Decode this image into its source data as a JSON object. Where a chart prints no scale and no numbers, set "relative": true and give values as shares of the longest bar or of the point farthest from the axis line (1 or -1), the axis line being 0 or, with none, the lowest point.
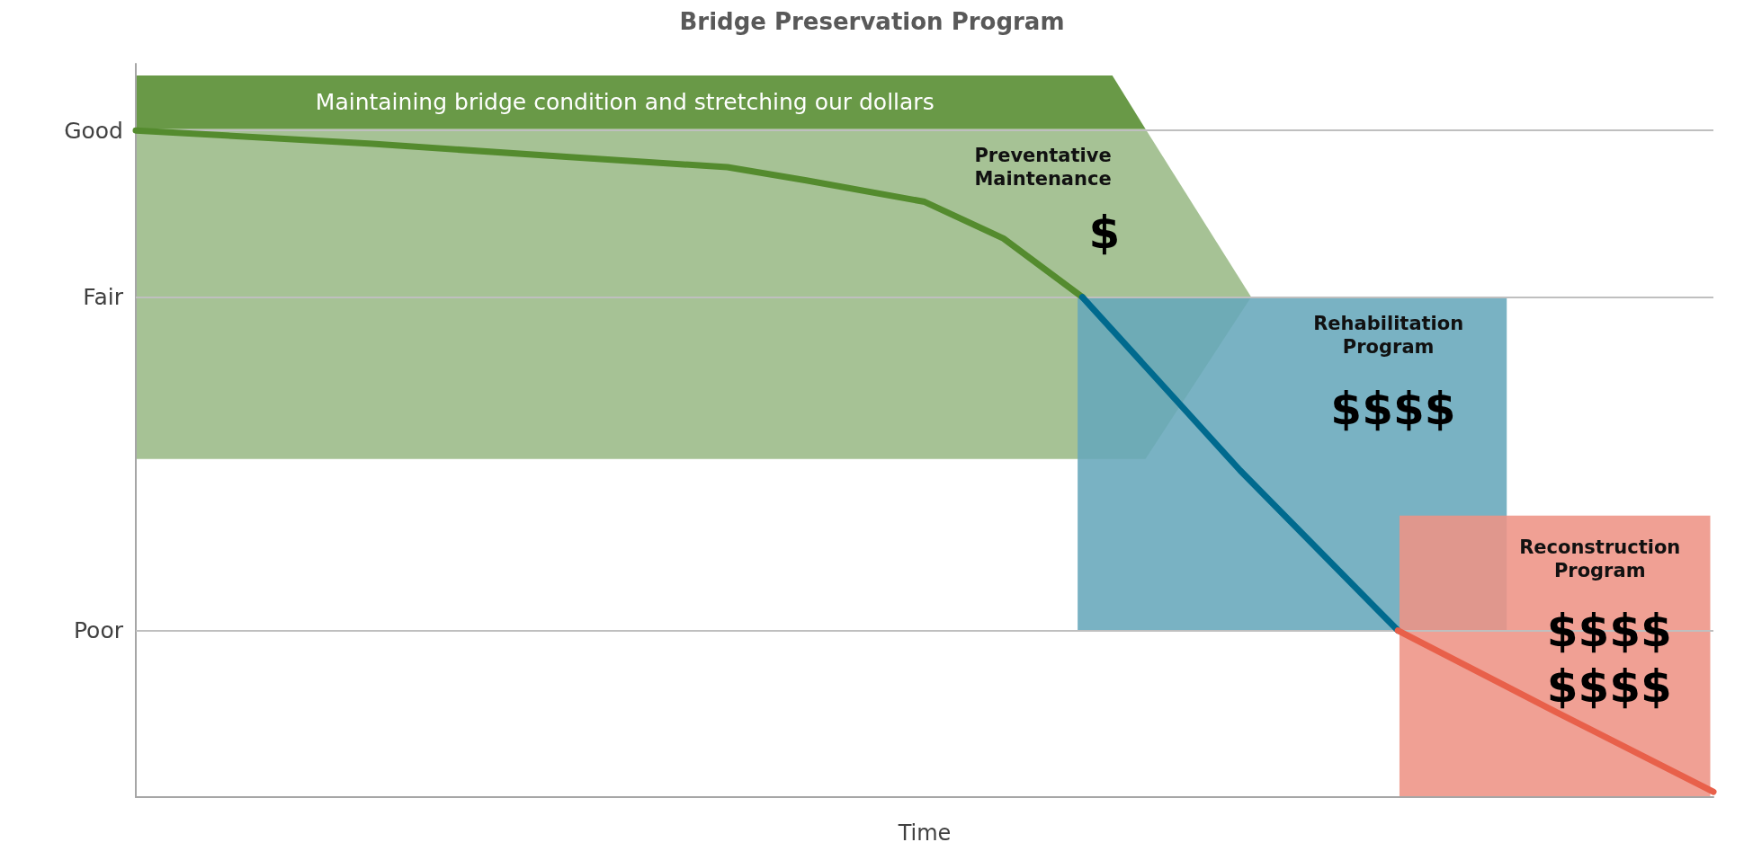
{
  "chart_data": {
    "type": "line",
    "title": "Bridge Preservation Program",
    "xlabel": "Time",
    "relative": true,
    "categories": [
      null,
      null,
      null,
      null,
      null,
      null,
      null,
      null,
      null,
      null,
      null,
      null,
      null,
      null,
      null,
      null,
      null,
      null,
      null,
      null,
      null,
      null,
      null,
      null,
      null,
      null,
      null,
      null,
      null,
      null,
      null,
      null,
      null,
      null,
      null,
      null,
      null,
      null,
      null,
      null,
      null
    ],
    "ref_lines": [
      {
        "axis": "y",
        "value": 0.25,
        "label": "Poor",
        "color": "#bfbfbf"
      },
      {
        "axis": "y",
        "value": 0.75,
        "label": "Fair",
        "color": "#bfbfbf"
      },
      {
        "axis": "y",
        "value": 1,
        "label": "Good",
        "color": "#bfbfbf"
      }
    ],
    "series": [
      {
        "color": "#548b2e",
        "values": [
          1,
          null,
          null,
          null,
          null,
          null,
          0.98,
          null,
          null,
          null,
          null,
          0.96,
          null,
          null,
          null,
          0.945,
          null,
          0.925,
          null,
          null,
          0.893,
          null,
          0.838,
          null,
          0.75,
          null,
          null,
          null,
          null,
          null,
          null,
          null,
          null,
          null,
          null,
          null,
          null,
          null,
          null,
          null,
          null
        ]
      },
      {
        "color": "#006a8e",
        "values": [
          null,
          null,
          null,
          null,
          null,
          null,
          null,
          null,
          null,
          null,
          null,
          null,
          null,
          null,
          null,
          null,
          null,
          null,
          null,
          null,
          null,
          null,
          null,
          null,
          0.75,
          null,
          null,
          null,
          0.49,
          null,
          null,
          null,
          0.25,
          null,
          null,
          null,
          null,
          null,
          null,
          null,
          null
        ]
      },
      {
        "color": "#e8604a",
        "values": [
          null,
          null,
          null,
          null,
          null,
          null,
          null,
          null,
          null,
          null,
          null,
          null,
          null,
          null,
          null,
          null,
          null,
          null,
          null,
          null,
          null,
          null,
          null,
          null,
          null,
          null,
          null,
          null,
          null,
          null,
          null,
          null,
          0.25,
          null,
          null,
          null,
          0.128,
          null,
          null,
          null,
          0.008
        ]
      }
    ],
    "annotations": [
      "Maintaining bridge condition and stretching our dollars",
      "Preventative\nMaintenance",
      "$",
      "Rehabilitation\nProgram",
      "$$$$",
      "Reconstruction\nProgram",
      "$$$$\n$$$$"
    ]
  }
}
